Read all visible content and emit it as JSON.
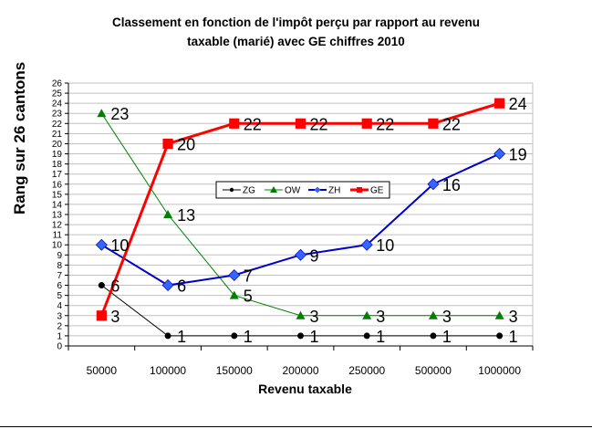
{
  "chart_data": {
    "type": "line",
    "title": "Classement en fonction de l'impôt perçu par rapport au revenu taxable (marié) avec GE chiffres 2010",
    "title_lines": [
      "Classement en fonction de l'impôt perçu par rapport au revenu",
      "taxable (marié) avec GE chiffres 2010"
    ],
    "xlabel": "Revenu taxable",
    "ylabel": "Rang sur 26 cantons",
    "categories": [
      "50000",
      "100000",
      "150000",
      "200000",
      "250000",
      "500000",
      "1000000"
    ],
    "ylim": [
      0,
      26
    ],
    "yticks": [
      0,
      1,
      2,
      3,
      4,
      5,
      6,
      7,
      8,
      9,
      10,
      11,
      12,
      13,
      14,
      15,
      16,
      17,
      18,
      19,
      20,
      21,
      22,
      23,
      24,
      25,
      26
    ],
    "grid": true,
    "legend_position": "inside-center",
    "data_labels": true,
    "series": [
      {
        "name": "ZG",
        "color": "#000000",
        "marker": "circle",
        "line_width": 1,
        "values": [
          6,
          1,
          1,
          1,
          1,
          1,
          1
        ]
      },
      {
        "name": "OW",
        "color": "#008000",
        "marker": "triangle",
        "line_width": 1,
        "values": [
          23,
          13,
          5,
          3,
          3,
          3,
          3
        ]
      },
      {
        "name": "ZH",
        "color": "#0000CC",
        "marker": "diamond",
        "marker_color": "#3366FF",
        "line_width": 2,
        "values": [
          10,
          6,
          7,
          9,
          10,
          16,
          19
        ]
      },
      {
        "name": "GE",
        "color": "#FF0000",
        "marker": "square",
        "line_width": 3,
        "values": [
          3,
          20,
          22,
          22,
          22,
          22,
          24
        ]
      }
    ]
  }
}
